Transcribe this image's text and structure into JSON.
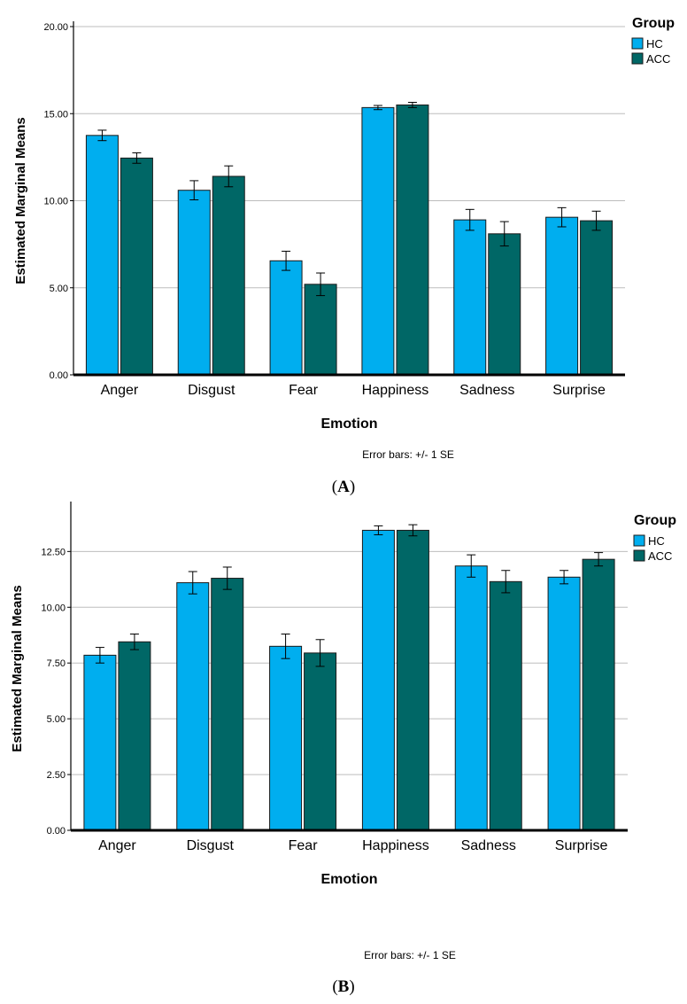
{
  "chart_data": [
    {
      "id": "A",
      "type": "bar",
      "panel_label": "A",
      "xlabel": "Emotion",
      "ylabel": "Estimated Marginal Means",
      "ylim": [
        0,
        20
      ],
      "yticks": [
        "0.00",
        "5.00",
        "10.00",
        "15.00",
        "20.00"
      ],
      "ytick_values": [
        0,
        5,
        10,
        15,
        20
      ],
      "grid": true,
      "legend_title": "Group",
      "legend_position": "top-right",
      "footnote": "Error bars: +/- 1 SE",
      "categories": [
        "Anger",
        "Disgust",
        "Fear",
        "Happiness",
        "Sadness",
        "Surprise"
      ],
      "series": [
        {
          "name": "HC",
          "color": "#00AEEF",
          "values": [
            13.75,
            10.6,
            6.55,
            15.35,
            8.9,
            9.05
          ],
          "se": [
            0.3,
            0.55,
            0.55,
            0.12,
            0.6,
            0.55
          ]
        },
        {
          "name": "ACC",
          "color": "#006766",
          "values": [
            12.45,
            11.4,
            5.2,
            15.5,
            8.1,
            8.85
          ],
          "se": [
            0.3,
            0.6,
            0.65,
            0.15,
            0.7,
            0.55
          ]
        }
      ]
    },
    {
      "id": "B",
      "type": "bar",
      "panel_label": "B",
      "xlabel": "Emotion",
      "ylabel": "Estimated Marginal Means",
      "ylim": [
        0,
        14.5
      ],
      "yticks": [
        "0.00",
        "2.50",
        "5.00",
        "7.50",
        "10.00",
        "12.50"
      ],
      "ytick_values": [
        0,
        2.5,
        5,
        7.5,
        10,
        12.5
      ],
      "grid": true,
      "legend_title": "Group",
      "legend_position": "top-right",
      "footnote": "Error bars: +/- 1 SE",
      "categories": [
        "Anger",
        "Disgust",
        "Fear",
        "Happiness",
        "Sadness",
        "Surprise"
      ],
      "series": [
        {
          "name": "HC",
          "color": "#00AEEF",
          "values": [
            7.85,
            11.1,
            8.25,
            13.45,
            11.85,
            11.35
          ],
          "se": [
            0.35,
            0.5,
            0.55,
            0.2,
            0.5,
            0.3
          ]
        },
        {
          "name": "ACC",
          "color": "#006766",
          "values": [
            8.45,
            11.3,
            7.95,
            13.45,
            11.15,
            12.15
          ],
          "se": [
            0.35,
            0.5,
            0.6,
            0.25,
            0.5,
            0.3
          ]
        }
      ]
    }
  ]
}
